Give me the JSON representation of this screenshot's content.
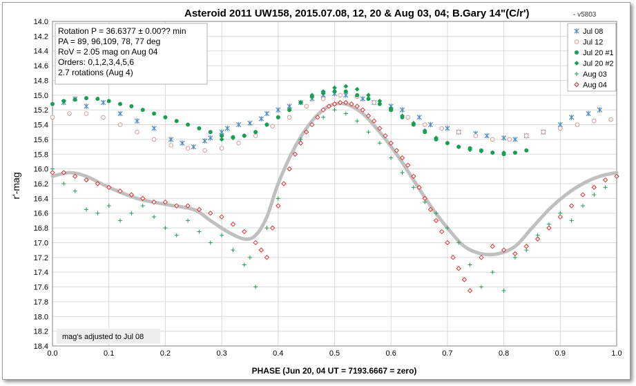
{
  "chart_data": {
    "type": "scatter",
    "title": "Asteroid 2011 UW158, 2015.07.08, 12, 20 & Aug 03, 04; B.Gary 14\"(C/r')",
    "subtitle": "- v5803",
    "xlabel": "PHASE (Jun 20, 04 UT = 7193.6667 = zero)",
    "ylabel": "r'-mag",
    "xlim": [
      0.0,
      1.0
    ],
    "ylim": [
      14.0,
      18.4
    ],
    "y_inverted": true,
    "x_ticks": [
      "0.0",
      "0.1",
      "0.2",
      "0.3",
      "0.4",
      "0.5",
      "0.6",
      "0.7",
      "0.8",
      "0.9",
      "1.0"
    ],
    "y_ticks": [
      "14.0",
      "14.2",
      "14.4",
      "14.6",
      "14.8",
      "15.0",
      "15.2",
      "15.4",
      "15.6",
      "15.8",
      "16.0",
      "16.2",
      "16.4",
      "16.6",
      "16.8",
      "17.0",
      "17.2",
      "17.4",
      "17.6",
      "17.8",
      "18.0",
      "18.2",
      "18.4"
    ],
    "grid": true,
    "legend_position": "top-right",
    "info_box": [
      "Rotation P = 36.6377 ± 0.00?? min",
      "PA =  89, 96,109, 78, 77 deg",
      "RoV = 2.05 mag on Aug 04",
      "Orders: 0,1,2,3,4,5,6",
      "2.7 rotations (Aug 4)"
    ],
    "note": "mag's adjusted to Jul 08",
    "model_curve": {
      "color": "#c0c0c0",
      "x": [
        0.0,
        0.03,
        0.06,
        0.1,
        0.15,
        0.2,
        0.25,
        0.28,
        0.31,
        0.34,
        0.36,
        0.38,
        0.4,
        0.43,
        0.46,
        0.49,
        0.52,
        0.55,
        0.58,
        0.61,
        0.64,
        0.67,
        0.7,
        0.73,
        0.76,
        0.79,
        0.82,
        0.85,
        0.88,
        0.91,
        0.94,
        0.97,
        1.0
      ],
      "y": [
        16.1,
        16.05,
        16.1,
        16.25,
        16.4,
        16.48,
        16.55,
        16.7,
        16.85,
        16.95,
        16.9,
        16.65,
        16.2,
        15.7,
        15.35,
        15.15,
        15.12,
        15.25,
        15.5,
        15.8,
        16.15,
        16.5,
        16.8,
        17.05,
        17.15,
        17.15,
        17.05,
        16.8,
        16.55,
        16.35,
        16.2,
        16.1,
        16.05
      ]
    },
    "series": [
      {
        "name": "Jul 08",
        "marker": "asterisk",
        "color": "#4f8bc0",
        "x": [
          0.02,
          0.04,
          0.06,
          0.09,
          0.12,
          0.15,
          0.18,
          0.21,
          0.23,
          0.25,
          0.27,
          0.28,
          0.3,
          0.31,
          0.33,
          0.35,
          0.37,
          0.38,
          0.4,
          0.42,
          0.44,
          0.46,
          0.48,
          0.5,
          0.52,
          0.55,
          0.57,
          0.6,
          0.62,
          0.65,
          0.67,
          0.7,
          0.72,
          0.75,
          0.77,
          0.8,
          0.82,
          0.84,
          0.87,
          0.9,
          0.92,
          0.95,
          0.97
        ],
        "y": [
          15.1,
          15.05,
          15.15,
          15.1,
          15.25,
          15.35,
          15.45,
          15.6,
          15.65,
          15.7,
          15.62,
          15.58,
          15.5,
          15.45,
          15.4,
          15.38,
          15.32,
          15.25,
          15.2,
          15.15,
          15.1,
          15.05,
          15.0,
          14.98,
          15.0,
          15.05,
          15.1,
          15.15,
          15.2,
          15.3,
          15.4,
          15.45,
          15.5,
          15.52,
          15.55,
          15.58,
          15.6,
          15.55,
          15.5,
          15.4,
          15.3,
          15.25,
          15.2
        ]
      },
      {
        "name": "Jul 12",
        "marker": "circle-open",
        "color": "#d99a9a",
        "x": [
          0.0,
          0.03,
          0.06,
          0.09,
          0.12,
          0.15,
          0.18,
          0.21,
          0.24,
          0.27,
          0.3,
          0.33,
          0.36,
          0.39,
          0.42,
          0.45,
          0.48,
          0.51,
          0.54,
          0.57,
          0.6,
          0.63,
          0.66,
          0.69,
          0.72,
          0.75,
          0.78,
          0.81,
          0.84,
          0.87,
          0.9,
          0.93,
          0.96,
          0.99
        ],
        "y": [
          15.3,
          15.25,
          15.25,
          15.3,
          15.4,
          15.5,
          15.6,
          15.68,
          15.72,
          15.75,
          15.72,
          15.65,
          15.55,
          15.42,
          15.3,
          15.15,
          15.05,
          15.0,
          15.02,
          15.1,
          15.2,
          15.3,
          15.4,
          15.45,
          15.5,
          15.55,
          15.6,
          15.6,
          15.55,
          15.5,
          15.45,
          15.4,
          15.35,
          15.33
        ]
      },
      {
        "name": "Jul 20 #1",
        "marker": "circle-filled",
        "color": "#1a9e55",
        "x": [
          0.0,
          0.02,
          0.04,
          0.06,
          0.08,
          0.1,
          0.12,
          0.14,
          0.16,
          0.18,
          0.2,
          0.22,
          0.24,
          0.26,
          0.28,
          0.3,
          0.32,
          0.34,
          0.36,
          0.38,
          0.4,
          0.42,
          0.44,
          0.46,
          0.48,
          0.5,
          0.52,
          0.54,
          0.56,
          0.58,
          0.6,
          0.62,
          0.64,
          0.66,
          0.68,
          0.7,
          0.72,
          0.74,
          0.76,
          0.78,
          0.8,
          0.82,
          0.84
        ],
        "y": [
          15.12,
          15.08,
          15.06,
          15.04,
          15.05,
          15.08,
          15.12,
          15.15,
          15.2,
          15.25,
          15.3,
          15.35,
          15.4,
          15.45,
          15.5,
          15.55,
          15.57,
          15.55,
          15.5,
          15.4,
          15.3,
          15.2,
          15.1,
          15.02,
          14.97,
          14.95,
          14.95,
          15.0,
          15.05,
          15.12,
          15.2,
          15.3,
          15.4,
          15.5,
          15.6,
          15.65,
          15.7,
          15.72,
          15.75,
          15.78,
          15.8,
          15.78,
          15.75
        ]
      },
      {
        "name": "Jul 20 #2",
        "marker": "diamond-filled",
        "color": "#1a9e55",
        "x": [
          0.3,
          0.32,
          0.34,
          0.36,
          0.38,
          0.4,
          0.42,
          0.44,
          0.46,
          0.48,
          0.5,
          0.52,
          0.54,
          0.56,
          0.58,
          0.6,
          0.62,
          0.64,
          0.66,
          0.68,
          0.7,
          0.72,
          0.74,
          0.76,
          0.78,
          0.8
        ],
        "y": [
          15.6,
          15.58,
          15.55,
          15.5,
          15.4,
          15.3,
          15.2,
          15.1,
          15.0,
          14.95,
          14.9,
          14.88,
          14.92,
          15.0,
          15.08,
          15.18,
          15.28,
          15.38,
          15.48,
          15.58,
          15.65,
          15.7,
          15.74,
          15.76,
          15.78,
          15.78
        ]
      },
      {
        "name": "Aug 03",
        "marker": "plus",
        "color": "#1a9e55",
        "x": [
          0.0,
          0.02,
          0.04,
          0.06,
          0.08,
          0.1,
          0.12,
          0.14,
          0.16,
          0.18,
          0.2,
          0.22,
          0.24,
          0.26,
          0.28,
          0.3,
          0.32,
          0.34,
          0.35,
          0.36,
          0.37,
          0.38,
          0.4,
          0.42,
          0.44,
          0.46,
          0.48,
          0.5,
          0.52,
          0.54,
          0.56,
          0.58,
          0.6,
          0.62,
          0.64,
          0.66,
          0.68,
          0.7,
          0.72,
          0.74,
          0.76,
          0.78,
          0.8,
          0.82,
          0.84,
          0.86,
          0.88,
          0.9,
          0.92,
          0.94,
          0.96,
          0.98,
          1.0
        ],
        "y": [
          16.0,
          16.2,
          16.3,
          16.55,
          16.6,
          16.5,
          16.7,
          16.6,
          16.5,
          16.65,
          16.8,
          16.9,
          16.7,
          16.85,
          17.0,
          16.9,
          17.1,
          17.3,
          17.2,
          17.6,
          17.1,
          16.8,
          16.4,
          16.0,
          15.6,
          15.4,
          15.3,
          15.2,
          15.25,
          15.35,
          15.5,
          15.65,
          15.85,
          16.05,
          16.25,
          16.45,
          16.6,
          16.8,
          17.0,
          17.3,
          17.6,
          17.4,
          17.65,
          17.2,
          17.1,
          16.9,
          16.75,
          16.6,
          16.7,
          16.5,
          16.35,
          16.25,
          16.1
        ]
      },
      {
        "name": "Aug 04",
        "marker": "diamond-open",
        "color": "#e03030",
        "x": [
          0.0,
          0.02,
          0.04,
          0.06,
          0.08,
          0.1,
          0.12,
          0.14,
          0.16,
          0.18,
          0.2,
          0.22,
          0.24,
          0.26,
          0.28,
          0.3,
          0.32,
          0.34,
          0.36,
          0.37,
          0.38,
          0.39,
          0.4,
          0.41,
          0.42,
          0.43,
          0.44,
          0.45,
          0.46,
          0.47,
          0.48,
          0.49,
          0.5,
          0.51,
          0.52,
          0.53,
          0.54,
          0.55,
          0.56,
          0.57,
          0.58,
          0.59,
          0.6,
          0.61,
          0.62,
          0.63,
          0.64,
          0.65,
          0.66,
          0.67,
          0.68,
          0.69,
          0.7,
          0.71,
          0.72,
          0.73,
          0.74,
          0.76,
          0.78,
          0.8,
          0.82,
          0.84,
          0.86,
          0.88,
          0.9,
          0.92,
          0.94,
          0.96,
          0.98,
          1.0
        ],
        "y": [
          16.05,
          16.05,
          16.1,
          16.15,
          16.2,
          16.25,
          16.3,
          16.35,
          16.4,
          16.45,
          16.45,
          16.5,
          16.5,
          16.55,
          16.6,
          16.65,
          16.75,
          16.85,
          17.0,
          17.1,
          17.2,
          16.8,
          16.5,
          16.2,
          16.0,
          15.8,
          15.65,
          15.5,
          15.4,
          15.3,
          15.2,
          15.15,
          15.12,
          15.1,
          15.1,
          15.12,
          15.15,
          15.2,
          15.28,
          15.35,
          15.45,
          15.55,
          15.65,
          15.75,
          15.85,
          15.95,
          16.1,
          16.25,
          16.4,
          16.55,
          16.7,
          16.85,
          17.0,
          17.2,
          17.35,
          17.5,
          17.65,
          17.2,
          17.05,
          17.1,
          17.15,
          17.05,
          16.95,
          16.8,
          16.65,
          16.5,
          16.35,
          16.25,
          16.15,
          16.1
        ]
      }
    ]
  }
}
